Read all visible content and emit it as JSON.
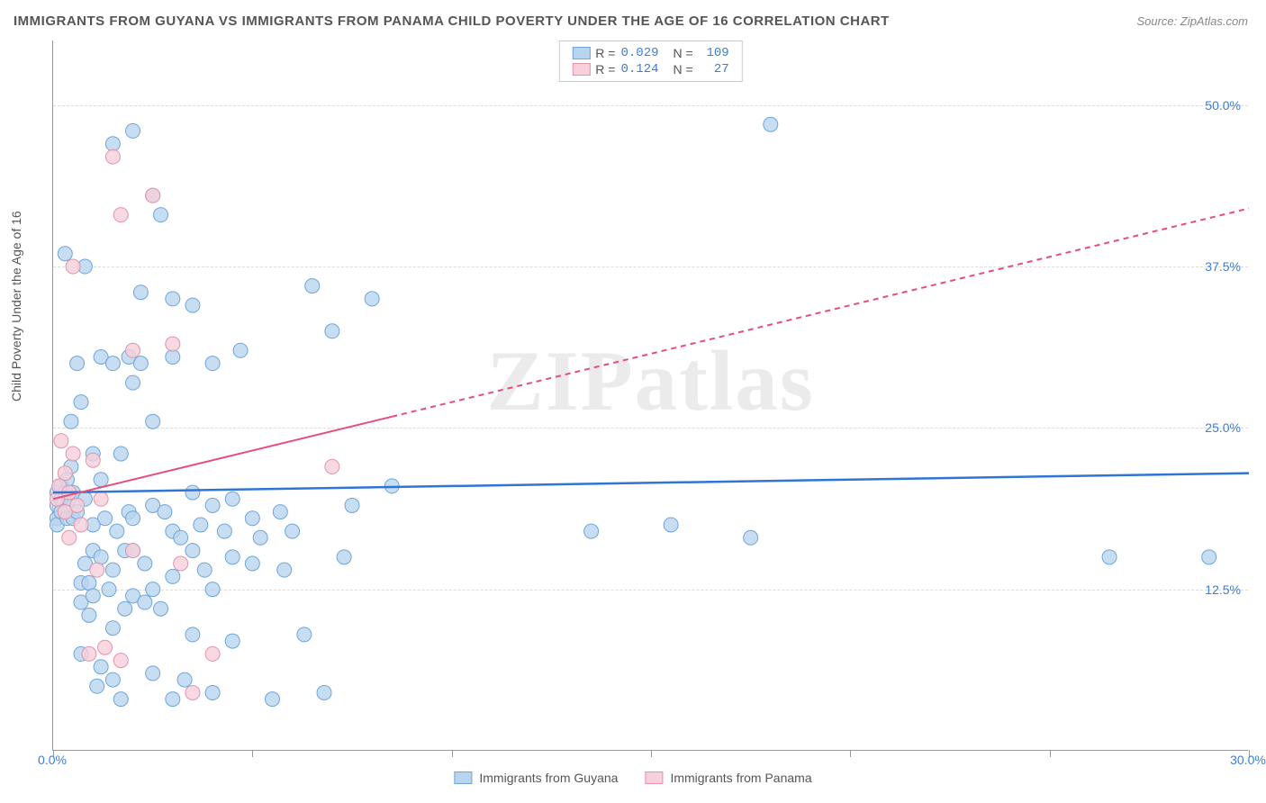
{
  "title": "IMMIGRANTS FROM GUYANA VS IMMIGRANTS FROM PANAMA CHILD POVERTY UNDER THE AGE OF 16 CORRELATION CHART",
  "source": "Source: ZipAtlas.com",
  "watermark": "ZIPatlas",
  "ylabel": "Child Poverty Under the Age of 16",
  "chart": {
    "type": "scatter-with-regression",
    "background_color": "#ffffff",
    "grid_color": "#dddddd",
    "axis_color": "#999999",
    "xlim": [
      0,
      30
    ],
    "ylim": [
      0,
      55
    ],
    "xtick_positions": [
      0,
      5,
      10,
      15,
      20,
      25,
      30
    ],
    "xtick_labels": [
      "0.0%",
      "",
      "",
      "",
      "",
      "",
      "30.0%"
    ],
    "ytick_positions": [
      12.5,
      25.0,
      37.5,
      50.0
    ],
    "ytick_labels": [
      "12.5%",
      "25.0%",
      "37.5%",
      "50.0%"
    ],
    "tick_label_color": "#3b7dd8",
    "tick_label_fontsize": 14,
    "marker_radius": 8,
    "marker_stroke_width": 1
  },
  "series": [
    {
      "name": "Immigrants from Guyana",
      "color_fill": "#b9d4ef",
      "color_stroke": "#6fa5db",
      "R": "0.029",
      "N": "109",
      "regression": {
        "x1": 0,
        "y1": 20.0,
        "x2": 30,
        "y2": 21.5,
        "color": "#2f75d6",
        "width": 2.5,
        "dash": ""
      },
      "points": [
        [
          0.1,
          19.0
        ],
        [
          0.1,
          18.0
        ],
        [
          0.1,
          20.0
        ],
        [
          0.1,
          17.5
        ],
        [
          0.2,
          19.5
        ],
        [
          0.2,
          20.5
        ],
        [
          0.2,
          18.5
        ],
        [
          0.3,
          38.5
        ],
        [
          0.35,
          18.0
        ],
        [
          0.35,
          21.0
        ],
        [
          0.3,
          20.0
        ],
        [
          0.4,
          19.5
        ],
        [
          0.45,
          25.5
        ],
        [
          0.45,
          22.0
        ],
        [
          0.5,
          18.0
        ],
        [
          0.5,
          20.0
        ],
        [
          0.6,
          30.0
        ],
        [
          0.6,
          18.5
        ],
        [
          0.7,
          27.0
        ],
        [
          0.7,
          13.0
        ],
        [
          0.7,
          11.5
        ],
        [
          0.7,
          7.5
        ],
        [
          0.8,
          37.5
        ],
        [
          0.8,
          14.5
        ],
        [
          0.8,
          19.5
        ],
        [
          0.9,
          13.0
        ],
        [
          0.9,
          10.5
        ],
        [
          1.0,
          17.5
        ],
        [
          1.0,
          23.0
        ],
        [
          1.0,
          15.5
        ],
        [
          1.0,
          12.0
        ],
        [
          1.1,
          5.0
        ],
        [
          1.2,
          30.5
        ],
        [
          1.2,
          15.0
        ],
        [
          1.2,
          21.0
        ],
        [
          1.2,
          6.5
        ],
        [
          1.3,
          18.0
        ],
        [
          1.4,
          12.5
        ],
        [
          1.5,
          47.0
        ],
        [
          1.5,
          30.0
        ],
        [
          1.5,
          14.0
        ],
        [
          1.5,
          9.5
        ],
        [
          1.5,
          5.5
        ],
        [
          1.6,
          17.0
        ],
        [
          1.7,
          23.0
        ],
        [
          1.7,
          4.0
        ],
        [
          1.8,
          15.5
        ],
        [
          1.8,
          11.0
        ],
        [
          1.9,
          30.5
        ],
        [
          1.9,
          18.5
        ],
        [
          2.0,
          48.0
        ],
        [
          2.0,
          28.5
        ],
        [
          2.0,
          18.0
        ],
        [
          2.0,
          12.0
        ],
        [
          2.0,
          15.5
        ],
        [
          2.2,
          35.5
        ],
        [
          2.2,
          30.0
        ],
        [
          2.3,
          14.5
        ],
        [
          2.3,
          11.5
        ],
        [
          2.5,
          43.0
        ],
        [
          2.5,
          25.5
        ],
        [
          2.5,
          19.0
        ],
        [
          2.5,
          12.5
        ],
        [
          2.5,
          6.0
        ],
        [
          2.7,
          41.5
        ],
        [
          2.7,
          11.0
        ],
        [
          2.8,
          18.5
        ],
        [
          3.0,
          35.0
        ],
        [
          3.0,
          30.5
        ],
        [
          3.0,
          17.0
        ],
        [
          3.0,
          13.5
        ],
        [
          3.0,
          4.0
        ],
        [
          3.2,
          16.5
        ],
        [
          3.3,
          5.5
        ],
        [
          3.5,
          34.5
        ],
        [
          3.5,
          20.0
        ],
        [
          3.5,
          15.5
        ],
        [
          3.5,
          9.0
        ],
        [
          3.7,
          17.5
        ],
        [
          3.8,
          14.0
        ],
        [
          4.0,
          30.0
        ],
        [
          4.0,
          19.0
        ],
        [
          4.0,
          12.5
        ],
        [
          4.0,
          4.5
        ],
        [
          4.3,
          17.0
        ],
        [
          4.5,
          19.5
        ],
        [
          4.5,
          15.0
        ],
        [
          4.5,
          8.5
        ],
        [
          4.7,
          31.0
        ],
        [
          5.0,
          18.0
        ],
        [
          5.0,
          14.5
        ],
        [
          5.2,
          16.5
        ],
        [
          5.5,
          4.0
        ],
        [
          5.7,
          18.5
        ],
        [
          5.8,
          14.0
        ],
        [
          6.0,
          17.0
        ],
        [
          6.3,
          9.0
        ],
        [
          6.5,
          36.0
        ],
        [
          6.8,
          4.5
        ],
        [
          7.0,
          32.5
        ],
        [
          7.3,
          15.0
        ],
        [
          7.5,
          19.0
        ],
        [
          8.0,
          35.0
        ],
        [
          8.5,
          20.5
        ],
        [
          13.5,
          17.0
        ],
        [
          15.5,
          17.5
        ],
        [
          17.5,
          16.5
        ],
        [
          18.0,
          48.5
        ],
        [
          26.5,
          15.0
        ],
        [
          29.0,
          15.0
        ]
      ]
    },
    {
      "name": "Immigrants from Panama",
      "color_fill": "#f6d0da",
      "color_stroke": "#e393ab",
      "R": "0.124",
      "N": "27",
      "regression": {
        "x1": 0,
        "y1": 19.5,
        "x2": 30,
        "y2": 42.0,
        "color": "#e84c7a",
        "width": 2,
        "dash": "6 5",
        "solid_until": 8.5
      },
      "points": [
        [
          0.1,
          19.5
        ],
        [
          0.15,
          20.5
        ],
        [
          0.2,
          24.0
        ],
        [
          0.3,
          18.5
        ],
        [
          0.3,
          21.5
        ],
        [
          0.4,
          20.0
        ],
        [
          0.4,
          16.5
        ],
        [
          0.5,
          23.0
        ],
        [
          0.5,
          37.5
        ],
        [
          0.6,
          19.0
        ],
        [
          0.7,
          17.5
        ],
        [
          0.9,
          7.5
        ],
        [
          1.0,
          22.5
        ],
        [
          1.1,
          14.0
        ],
        [
          1.2,
          19.5
        ],
        [
          1.3,
          8.0
        ],
        [
          1.5,
          46.0
        ],
        [
          1.7,
          41.5
        ],
        [
          1.7,
          7.0
        ],
        [
          2.0,
          31.0
        ],
        [
          2.0,
          15.5
        ],
        [
          2.5,
          43.0
        ],
        [
          3.0,
          31.5
        ],
        [
          3.2,
          14.5
        ],
        [
          3.5,
          4.5
        ],
        [
          4.0,
          7.5
        ],
        [
          7.0,
          22.0
        ]
      ]
    }
  ],
  "legend_top": {
    "bg": "#ffffff",
    "border": "#cccccc"
  },
  "legend_bottom_labels": [
    "Immigrants from Guyana",
    "Immigrants from Panama"
  ]
}
